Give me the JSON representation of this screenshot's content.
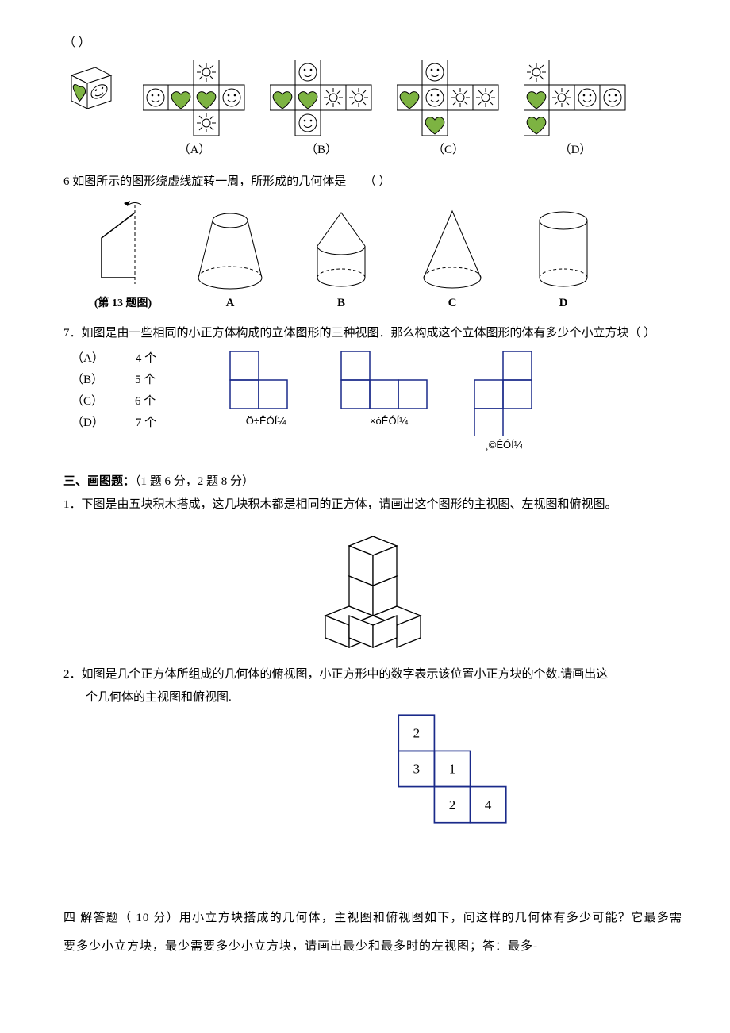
{
  "q5": {
    "paren": "（        ）",
    "labels": [
      "（A）",
      "（B）",
      "（C）",
      "（D）"
    ],
    "fillColor": "#7db342",
    "stroke": "#000000"
  },
  "q6": {
    "text": "6 如图所示的图形绕虚线旋转一周，所形成的几何体是",
    "paren": "（        ）",
    "caption": "(第 13 题图)",
    "labels": [
      "A",
      "B",
      "C",
      "D"
    ],
    "stroke": "#000000"
  },
  "q7": {
    "text": "7．如图是由一些相同的小正方体构成的立体图形的三种视图．那么构成这个立体图形的体有多少个小立方块（       ）",
    "options": [
      {
        "key": "（A）",
        "val": "4 个"
      },
      {
        "key": "（B）",
        "val": "5 个"
      },
      {
        "key": "（C）",
        "val": "6 个"
      },
      {
        "key": "（D）",
        "val": "7 个"
      }
    ],
    "captions": [
      "Ö÷ÊÓÍ¼",
      "×óÊÓÍ¼",
      "¸©ÊÓÍ¼"
    ],
    "lineColor": "#1a2a8a"
  },
  "sec3": {
    "heading": "三、画图题：",
    "scoring": "（1 题 6 分，2 题 8 分）",
    "q1": "1．下图是由五块积木搭成，这几块积木都是相同的正方体，请画出这个图形的主视图、左视图和俯视图。",
    "q2a": "2．如图是几个正方体所组成的几何体的俯视图，小正方形中的数字表示该位置小正方块的个数.请画出这",
    "q2b": "个几何体的主视图和俯视图.",
    "grid": {
      "cells": [
        {
          "r": 0,
          "c": 0,
          "v": "2"
        },
        {
          "r": 1,
          "c": 0,
          "v": "3"
        },
        {
          "r": 1,
          "c": 1,
          "v": "1"
        },
        {
          "r": 2,
          "c": 1,
          "v": "2"
        },
        {
          "r": 2,
          "c": 2,
          "v": "4"
        }
      ],
      "cell": 40,
      "stroke": "#1a2a8a"
    }
  },
  "sec4": {
    "text": "四    解答题（ 10 分）用小立方块搭成的几何体，主视图和俯视图如下，问这样的几何体有多少可能？它最多需要多少小立方块，最少需要多少小立方块，请画出最少和最多时的左视图；答：最多-"
  }
}
